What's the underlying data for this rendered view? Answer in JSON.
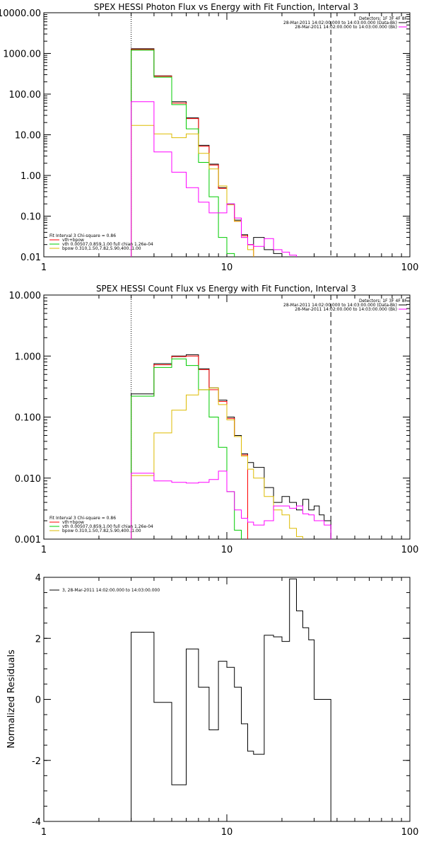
{
  "colors": {
    "data": "#000000",
    "model": "#ff0000",
    "vth": "#00cc00",
    "bpow": "#ddbb00",
    "background": "#ff00ff"
  },
  "chart_data": [
    {
      "type": "line",
      "title": "SPEX HESSI Photon Flux vs Energy with Fit Function, Interval 3",
      "xscale": "log",
      "yscale": "log",
      "xlim": [
        1,
        100
      ],
      "ylim": [
        0.01,
        10000
      ],
      "xticks": [
        "1",
        "10",
        "100"
      ],
      "yticks": [
        "0.01",
        "0.10",
        "1.00",
        "10.00",
        "100.00",
        "1000.00",
        "10000.00"
      ],
      "ytick_values": [
        0.01,
        0.1,
        1,
        10,
        100,
        1000,
        10000
      ],
      "detectors_label": "Detectors: 1F 3F 4F 8F",
      "legend_top": [
        {
          "text": "28-Mar-2011 14:02:00.000 to 14:03:00.000 (Data-Bk)",
          "color": "#000000"
        },
        {
          "text": "28-Mar-2011 14:02:00.000 to 14:03:00.000 (Bk)",
          "color": "#ff00ff"
        }
      ],
      "fit_label": "Fit Interval 3   Chi-square = 0.86",
      "legend_bottom": [
        {
          "text": "vth+bpow",
          "color": "#ff0000"
        },
        {
          "text": "vth 0.00507,0.859,1.00  full chian 1.26e-04",
          "color": "#00cc00"
        },
        {
          "text": "bpow 0.310,1.50,7.82,5.90,400.,1.00",
          "color": "#ddbb00"
        }
      ],
      "vlines": [
        3.0,
        37.0
      ],
      "edges": [
        3.0,
        4.0,
        5.0,
        6.0,
        7.0,
        8.0,
        9.0,
        10.0,
        11.0,
        12.0,
        13.0,
        14.0,
        16.0,
        18.0,
        20.0,
        22.0,
        24.0,
        26.0,
        28.0,
        30.0,
        32.0,
        34.0,
        37.0
      ],
      "series": [
        {
          "key": "data",
          "color": "#000000",
          "values": [
            1300,
            280,
            65,
            26,
            5.5,
            1.9,
            0.5,
            0.2,
            0.08,
            0.035,
            0.02,
            0.03,
            0.015,
            0.012,
            0.01
          ]
        },
        {
          "key": "model",
          "color": "#ff0000",
          "values": [
            1250,
            275,
            60,
            25,
            5.2,
            1.8,
            0.48,
            0.19,
            0.075,
            0.033,
            0.02
          ]
        },
        {
          "key": "vth",
          "color": "#00cc00",
          "values": [
            1200,
            260,
            55,
            14,
            2.1,
            0.3,
            0.03,
            0.012
          ]
        },
        {
          "key": "bpow",
          "color": "#ddbb00",
          "values": [
            17,
            10.5,
            8.5,
            10.5,
            3.5,
            1.45,
            0.55,
            0.19,
            0.075,
            0.03,
            0.015
          ]
        },
        {
          "key": "background",
          "color": "#ff00ff",
          "values": [
            65,
            3.8,
            1.2,
            0.5,
            0.22,
            0.12,
            0.12,
            0.2,
            0.09,
            0.03,
            0.02,
            0.018,
            0.028,
            0.015,
            0.013,
            0.011
          ]
        }
      ]
    },
    {
      "type": "line",
      "title": "SPEX HESSI Count Flux vs Energy with Fit Function, Interval 3",
      "xscale": "log",
      "yscale": "log",
      "xlim": [
        1,
        100
      ],
      "ylim": [
        0.001,
        10
      ],
      "xticks": [
        "1",
        "10",
        "100"
      ],
      "yticks": [
        "0.001",
        "0.010",
        "0.100",
        "1.000",
        "10.000"
      ],
      "ytick_values": [
        0.001,
        0.01,
        0.1,
        1,
        10
      ],
      "detectors_label": "Detectors: 1F 3F 4F 8F",
      "legend_top": [
        {
          "text": "28-Mar-2011 14:02:00.000 to 14:03:00.000 (Data-Bk)",
          "color": "#000000"
        },
        {
          "text": "28-Mar-2011 14:02:00.000 to 14:03:00.000 (Bk)",
          "color": "#ff00ff"
        }
      ],
      "fit_label": "Fit Interval 3   Chi-square = 0.86",
      "legend_bottom": [
        {
          "text": "vth+bpow",
          "color": "#ff0000"
        },
        {
          "text": "vth 0.00507,0.859,1.00  full chian 1.26e-04",
          "color": "#00cc00"
        },
        {
          "text": "bpow 0.310,1.50,7.82,5.90,400.,1.00",
          "color": "#ddbb00"
        }
      ],
      "vlines": [
        3.0,
        37.0
      ],
      "edges": [
        3.0,
        4.0,
        5.0,
        6.0,
        7.0,
        8.0,
        9.0,
        10.0,
        11.0,
        12.0,
        13.0,
        14.0,
        16.0,
        18.0,
        20.0,
        22.0,
        24.0,
        26.0,
        28.0,
        30.0,
        32.0,
        34.0,
        37.0
      ],
      "series": [
        {
          "key": "data",
          "color": "#000000",
          "values": [
            0.24,
            0.75,
            1.0,
            1.05,
            0.62,
            0.3,
            0.19,
            0.1,
            0.05,
            0.025,
            0.018,
            0.015,
            0.007,
            0.004,
            0.005,
            0.004,
            0.003,
            0.0045,
            0.003,
            0.0035,
            0.0025,
            0.002
          ]
        },
        {
          "key": "model",
          "color": "#ff0000",
          "values": [
            0.22,
            0.72,
            0.98,
            1.0,
            0.6,
            0.28,
            0.18,
            0.095,
            0.048,
            0.024
          ]
        },
        {
          "key": "vth",
          "color": "#00cc00",
          "values": [
            0.22,
            0.65,
            0.9,
            0.7,
            0.28,
            0.1,
            0.032,
            0.006,
            0.0014
          ]
        },
        {
          "key": "bpow",
          "color": "#ddbb00",
          "values": [
            0.011,
            0.055,
            0.13,
            0.23,
            0.28,
            0.3,
            0.16,
            0.09,
            0.048,
            0.023,
            0.014,
            0.01,
            0.005,
            0.003,
            0.0025,
            0.0015,
            0.0011
          ]
        },
        {
          "key": "background",
          "color": "#ff00ff",
          "values": [
            0.012,
            0.009,
            0.0085,
            0.0083,
            0.0085,
            0.0095,
            0.013,
            0.006,
            0.003,
            0.0022,
            0.0019,
            0.0017,
            0.002,
            0.0035,
            0.0035,
            0.0032,
            0.0035,
            0.0026,
            0.0025,
            0.002,
            0.002,
            0.0017
          ]
        }
      ]
    },
    {
      "type": "line",
      "title": "",
      "xscale": "log",
      "yscale": "linear",
      "xlim": [
        1,
        100
      ],
      "ylim": [
        -4,
        4
      ],
      "xticks": [
        "1",
        "10",
        "100"
      ],
      "yticks": [
        "-4",
        "-2",
        "0",
        "2",
        "4"
      ],
      "ytick_values": [
        -4,
        -2,
        0,
        2,
        4
      ],
      "ylabel": "Normalized Residuals",
      "legend_top": [
        {
          "text": "3, 28-Mar-2011 14:02:00.000 to 14:03:00.000",
          "color": "#000000"
        }
      ],
      "edges": [
        3.0,
        4.0,
        5.0,
        6.0,
        7.0,
        8.0,
        9.0,
        10.0,
        11.0,
        12.0,
        13.0,
        14.0,
        16.0,
        18.0,
        20.0,
        22.0,
        24.0,
        26.0,
        28.0,
        30.0,
        32.0,
        34.0,
        37.0
      ],
      "series": [
        {
          "key": "residuals",
          "color": "#000000",
          "values": [
            2.2,
            -0.1,
            -2.8,
            1.65,
            0.4,
            -1.0,
            1.25,
            1.05,
            0.4,
            -0.8,
            -1.7,
            -1.8,
            2.1,
            2.05,
            1.9,
            3.95,
            2.9,
            2.35,
            1.95,
            0.0,
            0.0,
            0.0
          ]
        }
      ]
    }
  ]
}
